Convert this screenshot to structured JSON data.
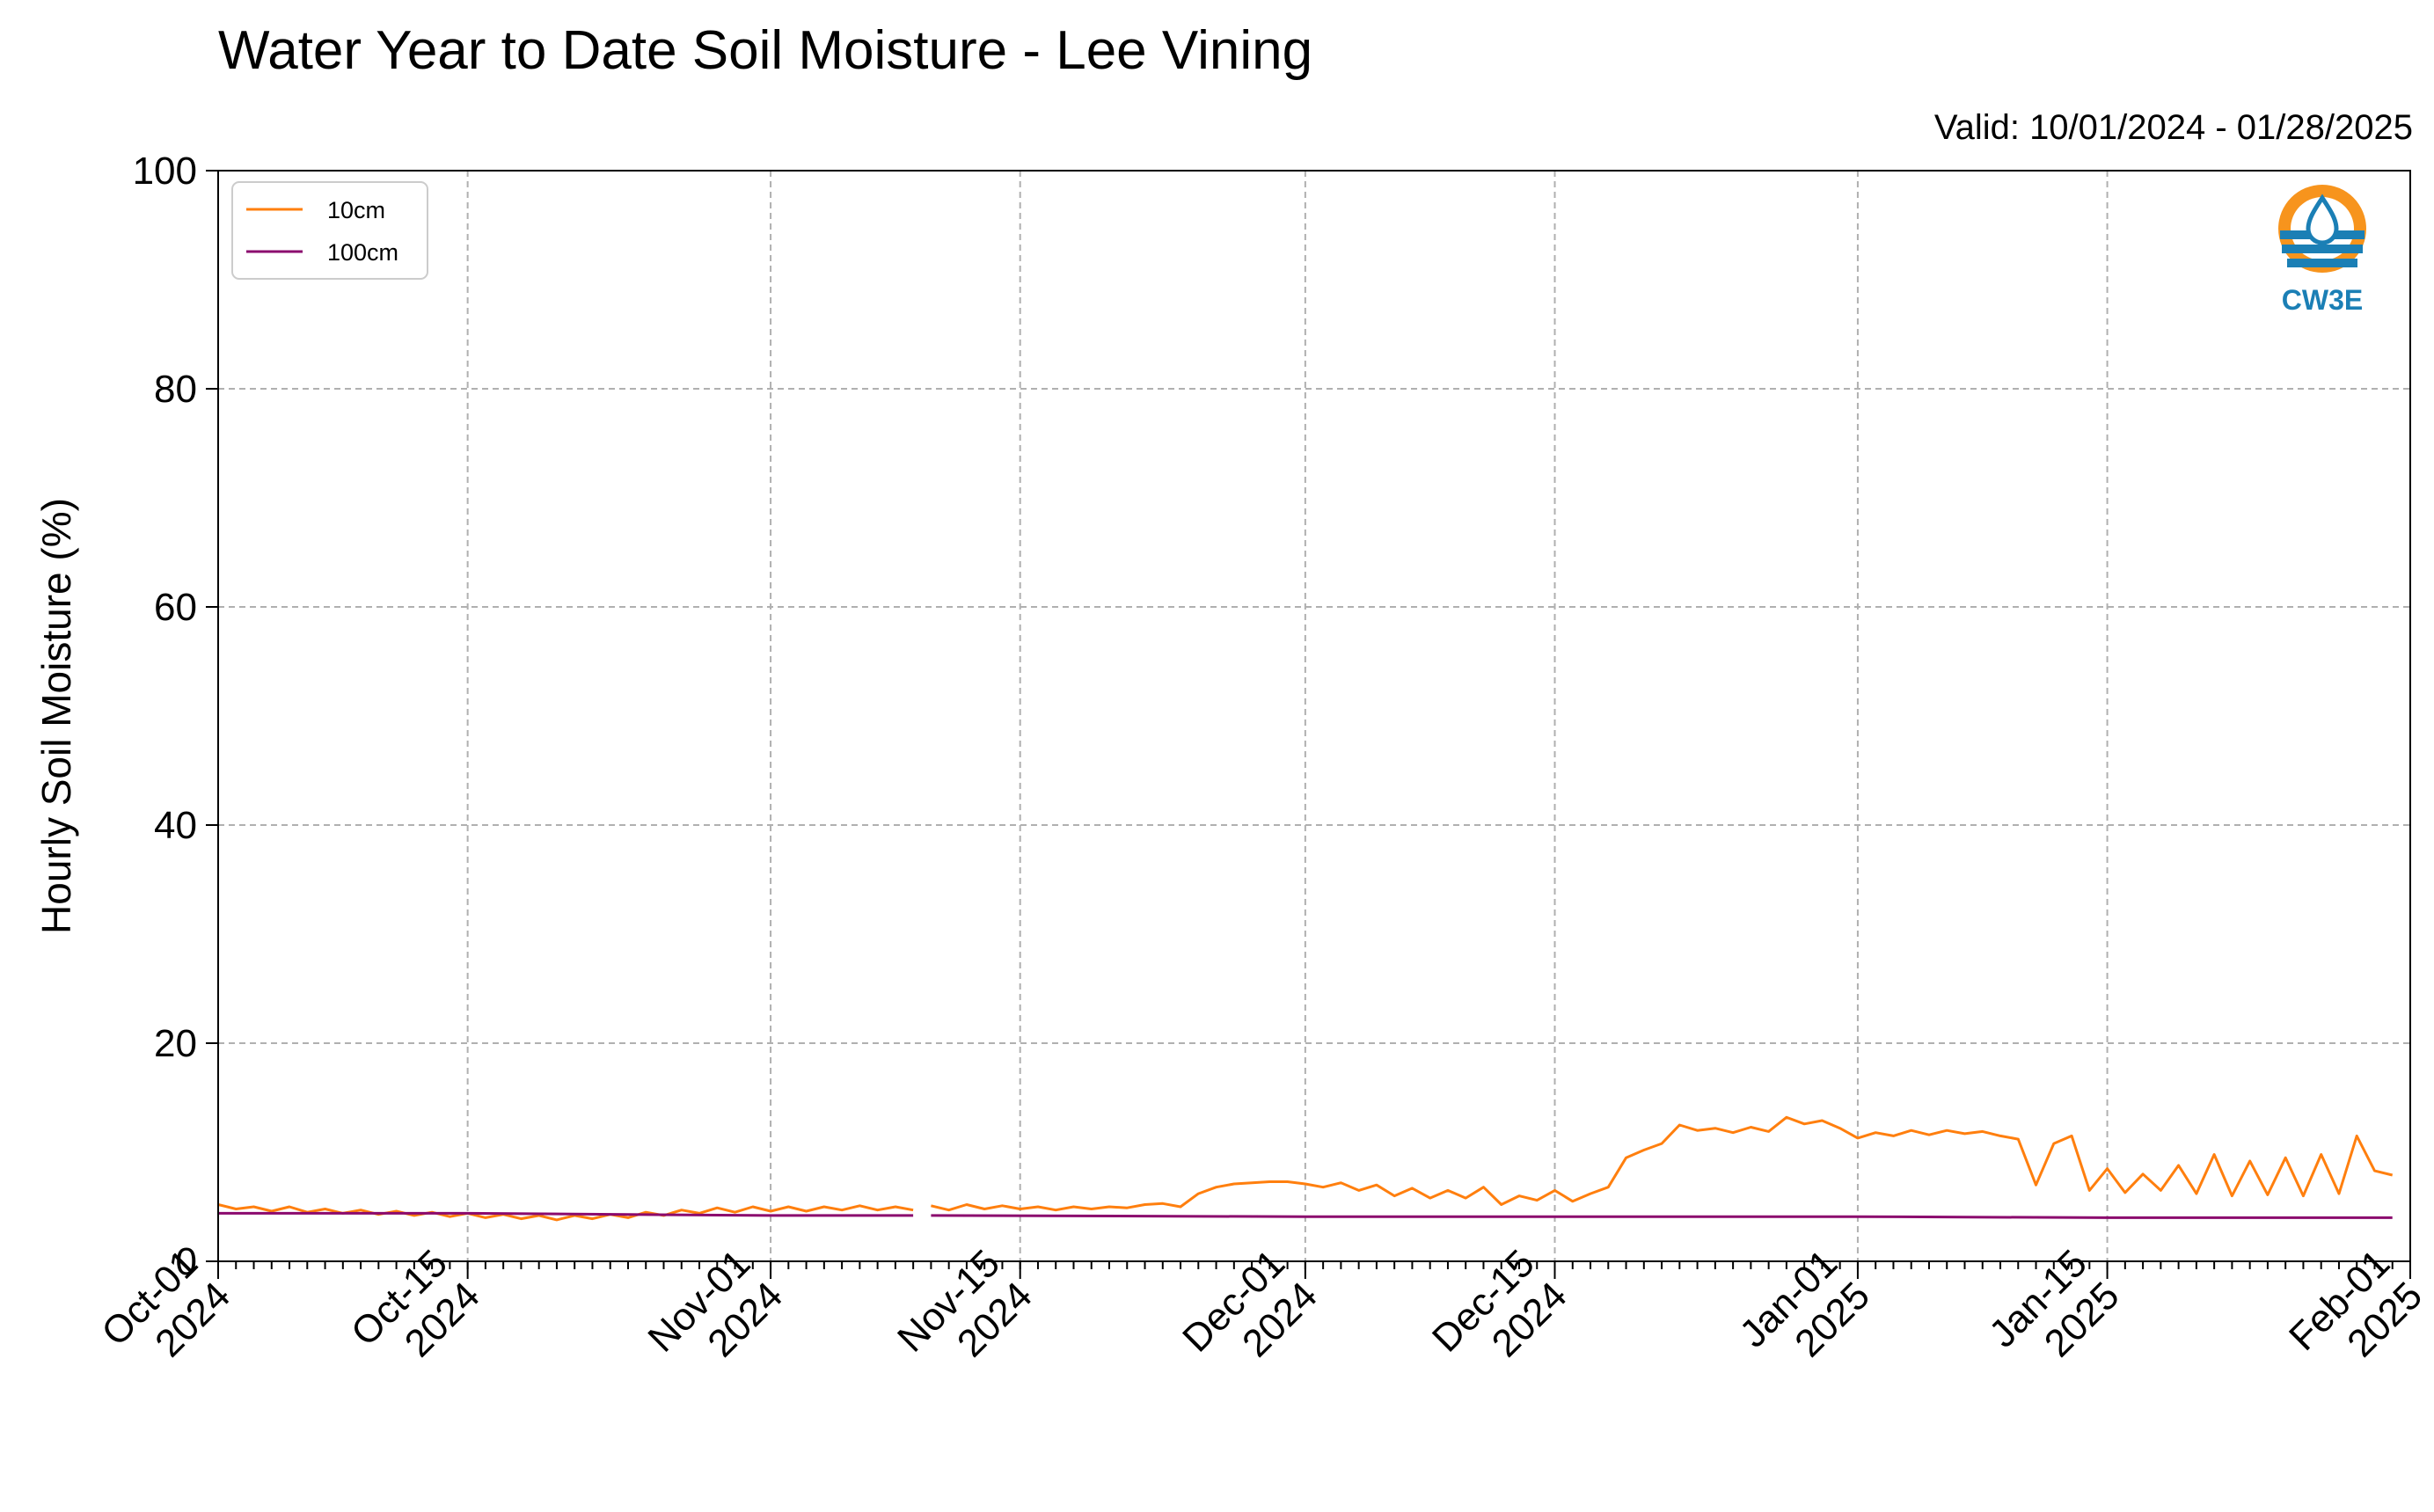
{
  "chart_data": {
    "type": "line",
    "title": "Water Year to Date Soil Moisture - Lee Vining",
    "subtitle": "Valid: 10/01/2024 - 01/28/2025",
    "xlabel": "",
    "ylabel": "Hourly Soil Moisture (%)",
    "ylim": [
      0,
      100
    ],
    "yticks": [
      "0",
      "20",
      "40",
      "60",
      "80",
      "100"
    ],
    "xlim": [
      "2024-10-01",
      "2025-02-01"
    ],
    "xticks": [
      {
        "date": "2024-10-01",
        "line1": "Oct-01",
        "line2": "2024"
      },
      {
        "date": "2024-10-15",
        "line1": "Oct-15",
        "line2": "2024"
      },
      {
        "date": "2024-11-01",
        "line1": "Nov-01",
        "line2": "2024"
      },
      {
        "date": "2024-11-15",
        "line1": "Nov-15",
        "line2": "2024"
      },
      {
        "date": "2024-12-01",
        "line1": "Dec-01",
        "line2": "2024"
      },
      {
        "date": "2024-12-15",
        "line1": "Dec-15",
        "line2": "2024"
      },
      {
        "date": "2025-01-01",
        "line1": "Jan-01",
        "line2": "2025"
      },
      {
        "date": "2025-01-15",
        "line1": "Jan-15",
        "line2": "2025"
      },
      {
        "date": "2025-02-01",
        "line1": "Feb-01",
        "line2": "2025"
      }
    ],
    "grid": true,
    "legend_position": "top-left",
    "series": [
      {
        "name": "10cm",
        "color": "#ff7f0e",
        "segments": [
          [
            [
              "2024-10-01",
              5.2
            ],
            [
              "2024-10-02",
              4.8
            ],
            [
              "2024-10-03",
              5.0
            ],
            [
              "2024-10-04",
              4.6
            ],
            [
              "2024-10-05",
              5.0
            ],
            [
              "2024-10-06",
              4.5
            ],
            [
              "2024-10-07",
              4.8
            ],
            [
              "2024-10-08",
              4.4
            ],
            [
              "2024-10-09",
              4.7
            ],
            [
              "2024-10-10",
              4.3
            ],
            [
              "2024-10-11",
              4.6
            ],
            [
              "2024-10-12",
              4.2
            ],
            [
              "2024-10-13",
              4.5
            ],
            [
              "2024-10-14",
              4.1
            ],
            [
              "2024-10-15",
              4.4
            ],
            [
              "2024-10-16",
              4.0
            ],
            [
              "2024-10-17",
              4.3
            ],
            [
              "2024-10-18",
              3.9
            ],
            [
              "2024-10-19",
              4.2
            ],
            [
              "2024-10-20",
              3.8
            ],
            [
              "2024-10-21",
              4.2
            ],
            [
              "2024-10-22",
              3.9
            ],
            [
              "2024-10-23",
              4.3
            ],
            [
              "2024-10-24",
              4.0
            ],
            [
              "2024-10-25",
              4.5
            ],
            [
              "2024-10-26",
              4.2
            ],
            [
              "2024-10-27",
              4.7
            ],
            [
              "2024-10-28",
              4.4
            ],
            [
              "2024-10-29",
              4.9
            ],
            [
              "2024-10-30",
              4.5
            ],
            [
              "2024-10-31",
              5.0
            ],
            [
              "2024-11-01",
              4.6
            ],
            [
              "2024-11-02",
              5.0
            ],
            [
              "2024-11-03",
              4.6
            ],
            [
              "2024-11-04",
              5.0
            ],
            [
              "2024-11-05",
              4.7
            ],
            [
              "2024-11-06",
              5.1
            ],
            [
              "2024-11-07",
              4.7
            ],
            [
              "2024-11-08",
              5.0
            ],
            [
              "2024-11-09",
              4.7
            ]
          ],
          [
            [
              "2024-11-10",
              5.1
            ],
            [
              "2024-11-11",
              4.7
            ],
            [
              "2024-11-12",
              5.2
            ],
            [
              "2024-11-13",
              4.8
            ],
            [
              "2024-11-14",
              5.1
            ],
            [
              "2024-11-15",
              4.8
            ],
            [
              "2024-11-16",
              5.0
            ],
            [
              "2024-11-17",
              4.7
            ],
            [
              "2024-11-18",
              5.0
            ],
            [
              "2024-11-19",
              4.8
            ],
            [
              "2024-11-20",
              5.0
            ],
            [
              "2024-11-21",
              4.9
            ],
            [
              "2024-11-22",
              5.2
            ],
            [
              "2024-11-23",
              5.3
            ],
            [
              "2024-11-24",
              5.0
            ],
            [
              "2024-11-25",
              6.2
            ],
            [
              "2024-11-26",
              6.8
            ],
            [
              "2024-11-27",
              7.1
            ],
            [
              "2024-11-28",
              7.2
            ],
            [
              "2024-11-29",
              7.3
            ],
            [
              "2024-11-30",
              7.3
            ],
            [
              "2024-12-01",
              7.1
            ],
            [
              "2024-12-02",
              6.8
            ],
            [
              "2024-12-03",
              7.2
            ],
            [
              "2024-12-04",
              6.5
            ],
            [
              "2024-12-05",
              7.0
            ],
            [
              "2024-12-06",
              6.0
            ],
            [
              "2024-12-07",
              6.7
            ],
            [
              "2024-12-08",
              5.8
            ],
            [
              "2024-12-09",
              6.5
            ],
            [
              "2024-12-10",
              5.8
            ],
            [
              "2024-12-11",
              6.8
            ],
            [
              "2024-12-12",
              5.2
            ],
            [
              "2024-12-13",
              6.0
            ],
            [
              "2024-12-14",
              5.6
            ],
            [
              "2024-12-15",
              6.5
            ],
            [
              "2024-12-16",
              5.5
            ],
            [
              "2024-12-17",
              6.2
            ],
            [
              "2024-12-18",
              6.8
            ],
            [
              "2024-12-19",
              9.5
            ],
            [
              "2024-12-20",
              10.2
            ],
            [
              "2024-12-21",
              10.8
            ],
            [
              "2024-12-22",
              12.5
            ],
            [
              "2024-12-23",
              12.0
            ],
            [
              "2024-12-24",
              12.2
            ],
            [
              "2024-12-25",
              11.8
            ],
            [
              "2024-12-26",
              12.3
            ],
            [
              "2024-12-27",
              11.9
            ],
            [
              "2024-12-28",
              13.2
            ],
            [
              "2024-12-29",
              12.6
            ],
            [
              "2024-12-30",
              12.9
            ],
            [
              "2024-12-31",
              12.2
            ],
            [
              "2025-01-01",
              11.3
            ],
            [
              "2025-01-02",
              11.8
            ],
            [
              "2025-01-03",
              11.5
            ],
            [
              "2025-01-04",
              12.0
            ],
            [
              "2025-01-05",
              11.6
            ],
            [
              "2025-01-06",
              12.0
            ],
            [
              "2025-01-07",
              11.7
            ],
            [
              "2025-01-08",
              11.9
            ],
            [
              "2025-01-09",
              11.5
            ],
            [
              "2025-01-10",
              11.2
            ],
            [
              "2025-01-11",
              7.0
            ],
            [
              "2025-01-12",
              10.8
            ],
            [
              "2025-01-13",
              11.5
            ],
            [
              "2025-01-14",
              6.5
            ],
            [
              "2025-01-15",
              8.5
            ],
            [
              "2025-01-16",
              6.3
            ],
            [
              "2025-01-17",
              8.0
            ],
            [
              "2025-01-18",
              6.5
            ],
            [
              "2025-01-19",
              8.8
            ],
            [
              "2025-01-20",
              6.2
            ],
            [
              "2025-01-21",
              9.8
            ],
            [
              "2025-01-22",
              6.0
            ],
            [
              "2025-01-23",
              9.2
            ],
            [
              "2025-01-24",
              6.1
            ],
            [
              "2025-01-25",
              9.5
            ],
            [
              "2025-01-26",
              6.0
            ],
            [
              "2025-01-27",
              9.8
            ],
            [
              "2025-01-28",
              6.2
            ],
            [
              "2025-01-29",
              11.5
            ],
            [
              "2025-01-30",
              8.3
            ],
            [
              "2025-01-31",
              7.9
            ]
          ]
        ]
      },
      {
        "name": "100cm",
        "color": "#8b0a6e",
        "segments": [
          [
            [
              "2024-10-01",
              4.4
            ],
            [
              "2024-10-15",
              4.4
            ],
            [
              "2024-11-01",
              4.2
            ],
            [
              "2024-11-09",
              4.2
            ]
          ],
          [
            [
              "2024-11-10",
              4.2
            ],
            [
              "2024-12-01",
              4.1
            ],
            [
              "2024-12-15",
              4.1
            ],
            [
              "2025-01-01",
              4.1
            ],
            [
              "2025-01-15",
              4.0
            ],
            [
              "2025-01-31",
              4.0
            ]
          ]
        ]
      }
    ]
  },
  "logo": {
    "text": "CW3E",
    "accent": "#f7941d",
    "blue": "#1b7fb5"
  }
}
